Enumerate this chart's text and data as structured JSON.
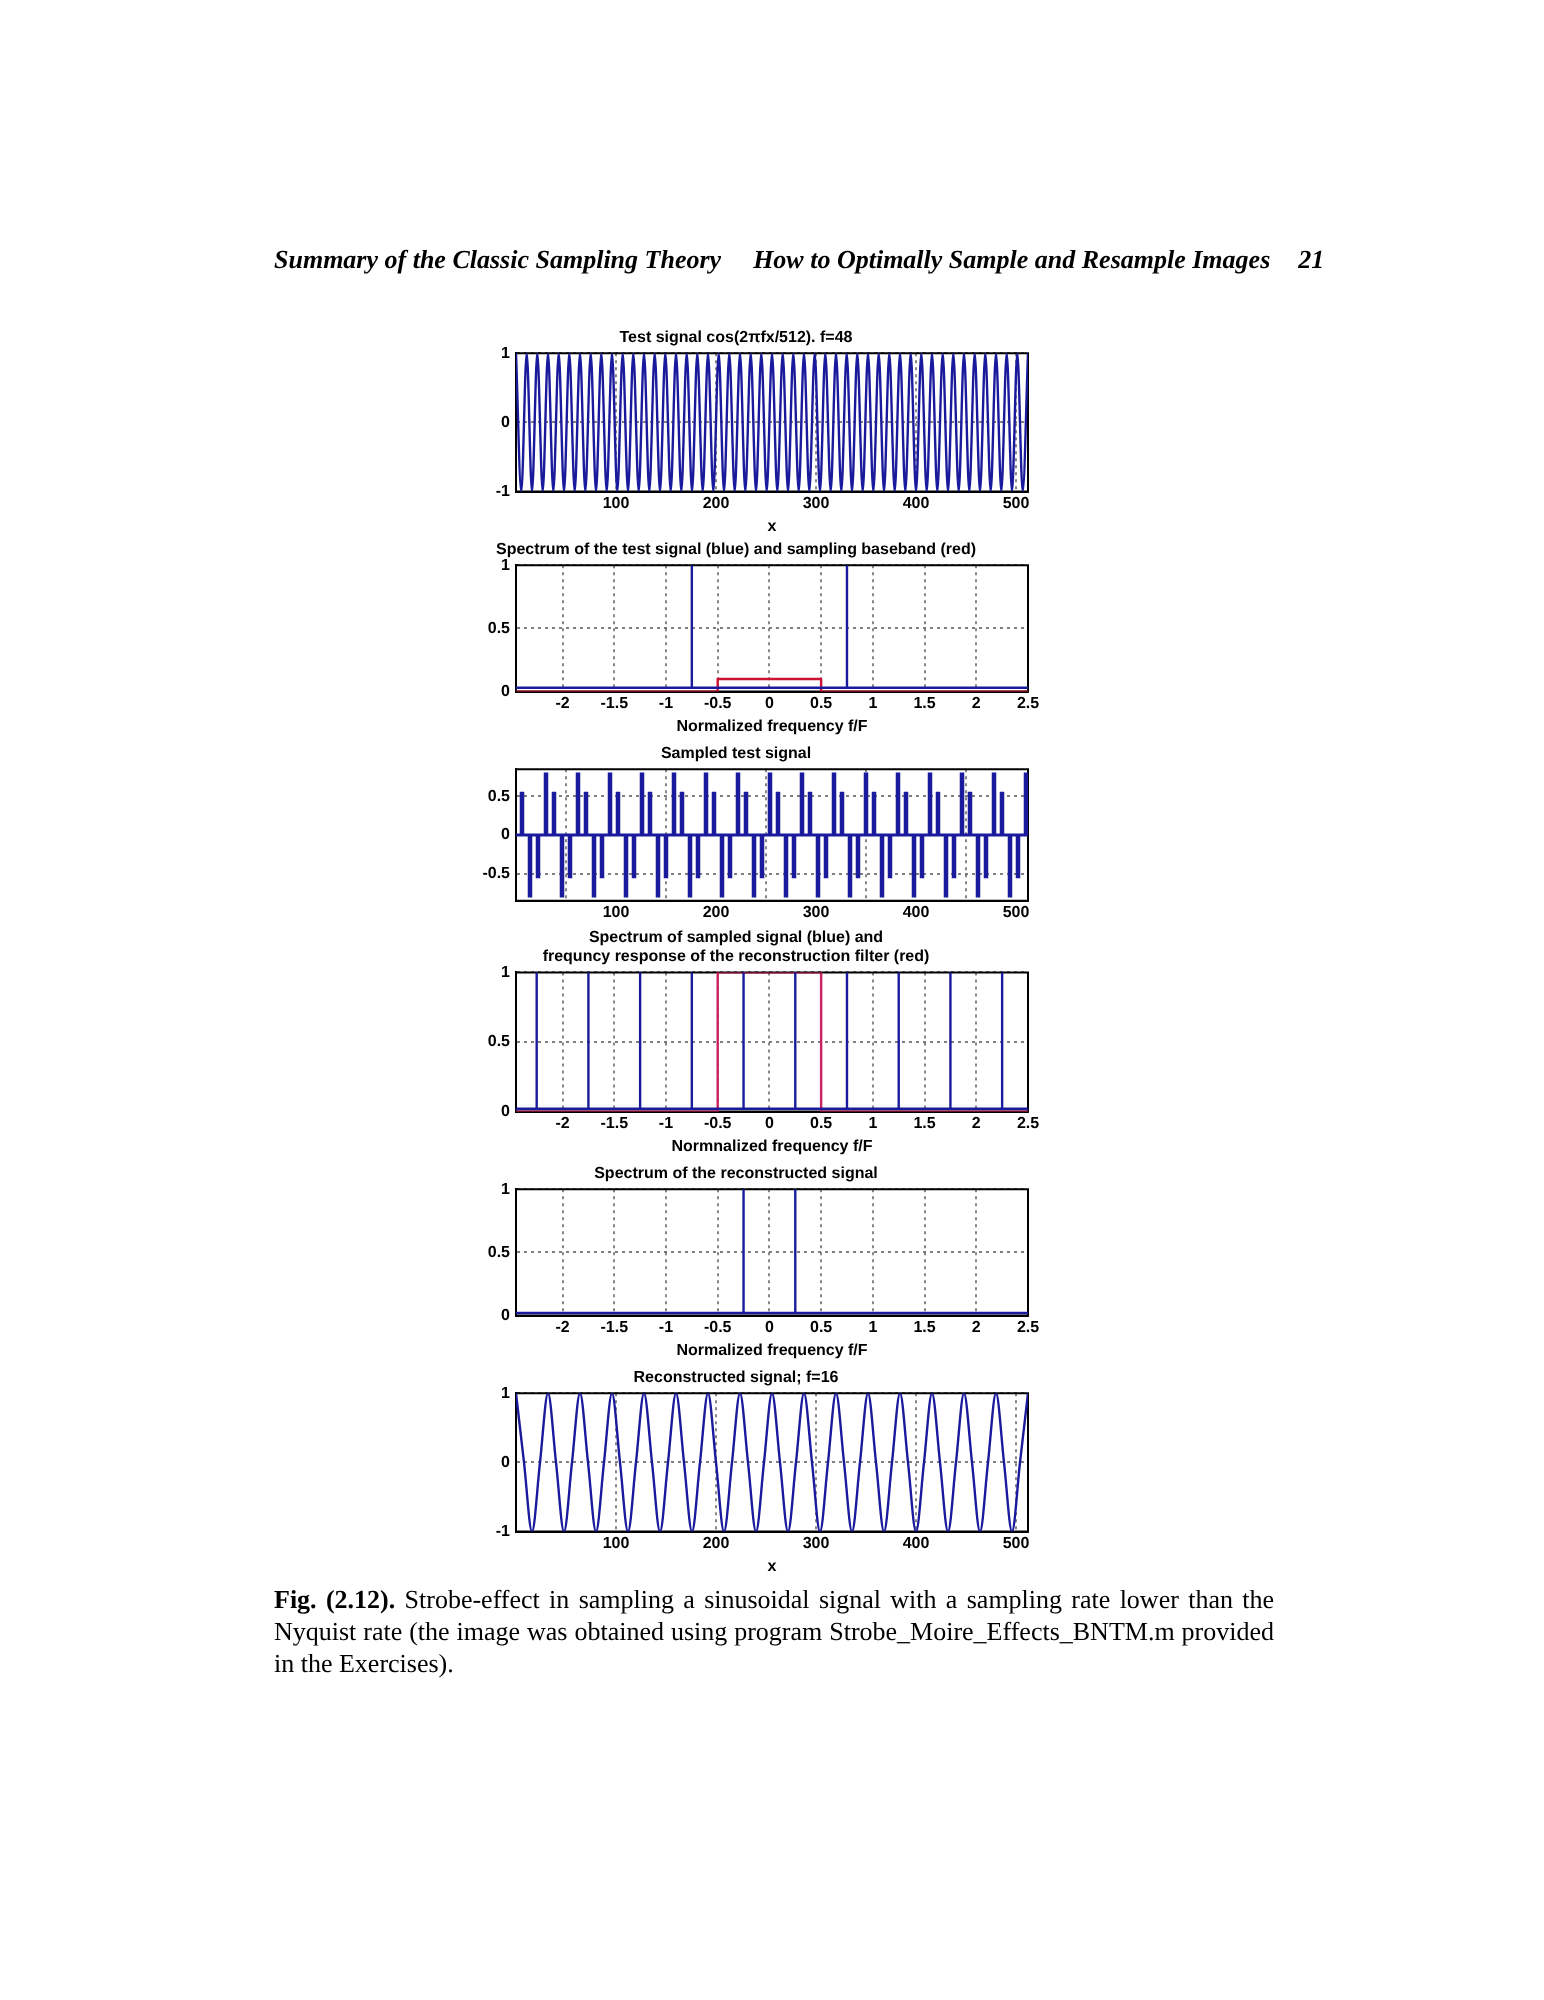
{
  "chart_data": [
    {
      "type": "line",
      "title": "Test signal cos(2πfx/512). f=48",
      "xlabel": "x",
      "xlim": [
        0,
        512
      ],
      "xticks": [
        100,
        200,
        300,
        400,
        500
      ],
      "ylim": [
        -1,
        1
      ],
      "yticks": [
        -1,
        0,
        1
      ],
      "grid": true,
      "marker": "none",
      "line_style": "solid",
      "annotations": [
        "Summary of the Classic Sampling Theory",
        "How to Optimally Sample and Resample Images",
        "21"
      ],
      "x": [
        0,
        5.3,
        10.7,
        16,
        21.3,
        26.7,
        32,
        37.3,
        42.7,
        48,
        53.3,
        58.7,
        64,
        69.3,
        74.7,
        80,
        85.3,
        90.7,
        96,
        101.3,
        106.7,
        112,
        117.3,
        122.7,
        128,
        133.3,
        138.7,
        144,
        149.3,
        154.7,
        160,
        165.3,
        170.7,
        176,
        181.3,
        186.7,
        192,
        197.3,
        202.7,
        208,
        213.3,
        218.7,
        224,
        229.3,
        234.7,
        240,
        245.3,
        250.7,
        256,
        261.3,
        266.7,
        272,
        277.3,
        282.7,
        288,
        293.3,
        298.7,
        304,
        309.3,
        314.7,
        320,
        325.3,
        330.7,
        336,
        341.3,
        346.7,
        352,
        357.3,
        362.7,
        368,
        373.3,
        378.7,
        384,
        389.3,
        394.7,
        400,
        405.3,
        410.7,
        416,
        421.3,
        426.7,
        432,
        437.3,
        442.7,
        448,
        453.3,
        458.7,
        464,
        469.3,
        474.7,
        480,
        485.3,
        490.7,
        496,
        501.3,
        506.7,
        512
      ],
      "series": [
        {
          "color": "#1a1a9c",
          "values": [
            1,
            -1,
            1,
            -1,
            1,
            -1,
            1,
            -1,
            1,
            -1,
            1,
            -1,
            1,
            -1,
            1,
            -1,
            1,
            -1,
            1,
            -1,
            1,
            -1,
            1,
            -1,
            1,
            -1,
            1,
            -1,
            1,
            -1,
            1,
            -1,
            1,
            -1,
            1,
            -1,
            1,
            -1,
            1,
            -1,
            1,
            -1,
            1,
            -1,
            1,
            -1,
            1,
            -1,
            1,
            -1,
            1,
            -1,
            1,
            -1,
            1,
            -1,
            1,
            -1,
            1,
            -1,
            1,
            -1,
            1,
            -1,
            1,
            -1,
            1,
            -1,
            1,
            -1,
            1,
            -1,
            1,
            -1,
            1,
            -1,
            1,
            -1,
            1,
            -1,
            1,
            -1,
            1,
            -1,
            1,
            -1,
            1,
            -1,
            1,
            -1,
            1,
            -1,
            1,
            -1,
            1,
            -1,
            1
          ]
        }
      ]
    },
    {
      "type": "line",
      "title": "Spectrum of the test signal (blue) and sampling baseband (red)",
      "xlabel": "Normalized frequency f/F",
      "xlim": [
        -2.45,
        2.5
      ],
      "xticks": [
        -2,
        -1.5,
        -1,
        -0.5,
        0,
        0.5,
        1,
        1.5,
        2,
        2.5
      ],
      "ylim": [
        0,
        1
      ],
      "yticks": [
        0,
        0.5,
        1
      ],
      "grid": true,
      "marker": "none",
      "line_style": "solid",
      "series": [
        {
          "color": "#1a1a9c",
          "x": [
            -2.45,
            -0.75,
            -0.75,
            -0.75,
            0.75,
            0.75,
            0.75,
            2.5
          ],
          "values": [
            0.03,
            0.03,
            1,
            0.03,
            0.03,
            1,
            0.03,
            0.03
          ]
        },
        {
          "color": "#cc1133",
          "x": [
            -2.45,
            -0.5,
            -0.5,
            0.5,
            0.5,
            2.5
          ],
          "values": [
            0,
            0,
            0.1,
            0.1,
            0,
            0
          ]
        }
      ]
    },
    {
      "type": "bar",
      "title": "Sampled test signal",
      "xlim": [
        0,
        512
      ],
      "xticks": [
        100,
        200,
        300,
        400,
        500
      ],
      "ylim": [
        -0.85,
        0.85
      ],
      "yticks": [
        -0.5,
        0,
        0.5
      ],
      "grid": true,
      "ref_lines": [
        {
          "axis": "y",
          "value": 0,
          "color": "#1a1a9c"
        }
      ],
      "x": [
        6,
        14,
        22,
        30,
        38,
        46,
        54,
        62,
        70,
        78,
        86,
        94,
        102,
        110,
        118,
        126,
        134,
        142,
        150,
        158,
        166,
        174,
        182,
        190,
        198,
        206,
        214,
        222,
        230,
        238,
        246,
        254,
        262,
        270,
        278,
        286,
        294,
        302,
        310,
        318,
        326,
        334,
        342,
        350,
        358,
        366,
        374,
        382,
        390,
        398,
        406,
        414,
        422,
        430,
        438,
        446,
        454,
        462,
        470,
        478,
        486,
        494,
        502,
        510
      ],
      "series": [
        {
          "color": "#1a1a9c",
          "values": [
            0.55,
            -0.8,
            -0.55,
            0.8,
            0.55,
            -0.8,
            -0.55,
            0.8,
            0.55,
            -0.8,
            -0.55,
            0.8,
            0.55,
            -0.8,
            -0.55,
            0.8,
            0.55,
            -0.8,
            -0.55,
            0.8,
            0.55,
            -0.8,
            -0.55,
            0.8,
            0.55,
            -0.8,
            -0.55,
            0.8,
            0.55,
            -0.8,
            -0.55,
            0.8,
            0.55,
            -0.8,
            -0.55,
            0.8,
            0.55,
            -0.8,
            -0.55,
            0.8,
            0.55,
            -0.8,
            -0.55,
            0.8,
            0.55,
            -0.8,
            -0.55,
            0.8,
            0.55,
            -0.8,
            -0.55,
            0.8,
            0.55,
            -0.8,
            -0.55,
            0.8,
            0.55,
            -0.8,
            -0.55,
            0.8,
            0.55,
            -0.8,
            -0.55,
            0.8
          ]
        }
      ]
    },
    {
      "type": "line",
      "title": "Spectrum of sampled signal (blue) and\nfrequncy response of the reconstruction filter (red)",
      "xlabel": "Normnalized frequency f/F",
      "xlim": [
        -2.45,
        2.5
      ],
      "xticks": [
        -2,
        -1.5,
        -1,
        -0.5,
        0,
        0.5,
        1,
        1.5,
        2,
        2.5
      ],
      "ylim": [
        0,
        1
      ],
      "yticks": [
        0,
        0.5,
        1
      ],
      "grid": true,
      "marker": "none",
      "line_style": "solid",
      "series": [
        {
          "color": "#1a1a9c",
          "x": [
            -2.45,
            -2.25,
            -2.25,
            -2.25,
            -1.75,
            -1.75,
            -1.75,
            -1.25,
            -1.25,
            -1.25,
            -0.75,
            -0.75,
            -0.75,
            -0.25,
            -0.25,
            -0.25,
            0.25,
            0.25,
            0.25,
            0.75,
            0.75,
            0.75,
            1.25,
            1.25,
            1.25,
            1.75,
            1.75,
            1.75,
            2.25,
            2.25,
            2.25,
            2.5
          ],
          "values": [
            0.02,
            0.02,
            1,
            0.02,
            0.02,
            1,
            0.02,
            0.02,
            1,
            0.02,
            0.02,
            1,
            0.02,
            0.02,
            1,
            0.02,
            0.02,
            1,
            0.02,
            0.02,
            1,
            0.02,
            0.02,
            1,
            0.02,
            0.02,
            1,
            0.02,
            0.02,
            1,
            0.02,
            0.02
          ]
        },
        {
          "color": "#cc2060",
          "x": [
            -2.45,
            -0.5,
            -0.5,
            0.5,
            0.5,
            2.5
          ],
          "values": [
            0,
            0,
            1,
            1,
            0,
            0
          ]
        }
      ]
    },
    {
      "type": "line",
      "title": "Spectrum of the reconstructed signal",
      "xlabel": "Normalized frequency f/F",
      "xlim": [
        -2.45,
        2.5
      ],
      "xticks": [
        -2,
        -1.5,
        -1,
        -0.5,
        0,
        0.5,
        1,
        1.5,
        2,
        2.5
      ],
      "ylim": [
        0,
        1
      ],
      "yticks": [
        0,
        0.5,
        1
      ],
      "grid": true,
      "marker": "none",
      "line_style": "solid",
      "series": [
        {
          "color": "#1a1a9c",
          "x": [
            -2.45,
            -0.25,
            -0.25,
            -0.25,
            0.25,
            0.25,
            0.25,
            2.5
          ],
          "values": [
            0.02,
            0.02,
            1,
            0.02,
            0.02,
            1,
            0.02,
            0.02
          ]
        }
      ]
    },
    {
      "type": "line",
      "title": "Reconstructed signal; f=16",
      "xlabel": "x",
      "xlim": [
        0,
        512
      ],
      "xticks": [
        100,
        200,
        300,
        400,
        500
      ],
      "ylim": [
        -1,
        1
      ],
      "yticks": [
        -1,
        0,
        1
      ],
      "grid": true,
      "marker": "none",
      "line_style": "solid",
      "annotations": [
        "Fig. (2.12).",
        "Strobe-effect in sampling a sinusoidal signal with a sampling rate lower than the Nyquist rate (the image was obtained using program Strobe_Moire_Effects_BNTM.m provided in the Exercises)."
      ],
      "x": [
        0,
        8,
        16,
        24,
        32,
        40,
        48,
        56,
        64,
        72,
        80,
        88,
        96,
        104,
        112,
        120,
        128,
        136,
        144,
        152,
        160,
        168,
        176,
        184,
        192,
        200,
        208,
        216,
        224,
        232,
        240,
        248,
        256,
        264,
        272,
        280,
        288,
        296,
        304,
        312,
        320,
        328,
        336,
        344,
        352,
        360,
        368,
        376,
        384,
        392,
        400,
        408,
        416,
        424,
        432,
        440,
        448,
        456,
        464,
        472,
        480,
        488,
        496,
        504,
        512
      ],
      "series": [
        {
          "color": "#1a1a9c",
          "values": [
            1,
            0,
            -1,
            0,
            1,
            0,
            -1,
            0,
            1,
            0,
            -1,
            0,
            1,
            0,
            -1,
            0,
            1,
            0,
            -1,
            0,
            1,
            0,
            -1,
            0,
            1,
            0,
            -1,
            0,
            1,
            0,
            -1,
            0,
            1,
            0,
            -1,
            0,
            1,
            0,
            -1,
            0,
            1,
            0,
            -1,
            0,
            1,
            0,
            -1,
            0,
            1,
            0,
            -1,
            0,
            1,
            0,
            -1,
            0,
            1,
            0,
            -1,
            0,
            1,
            0,
            -1,
            0,
            1
          ]
        }
      ]
    }
  ]
}
